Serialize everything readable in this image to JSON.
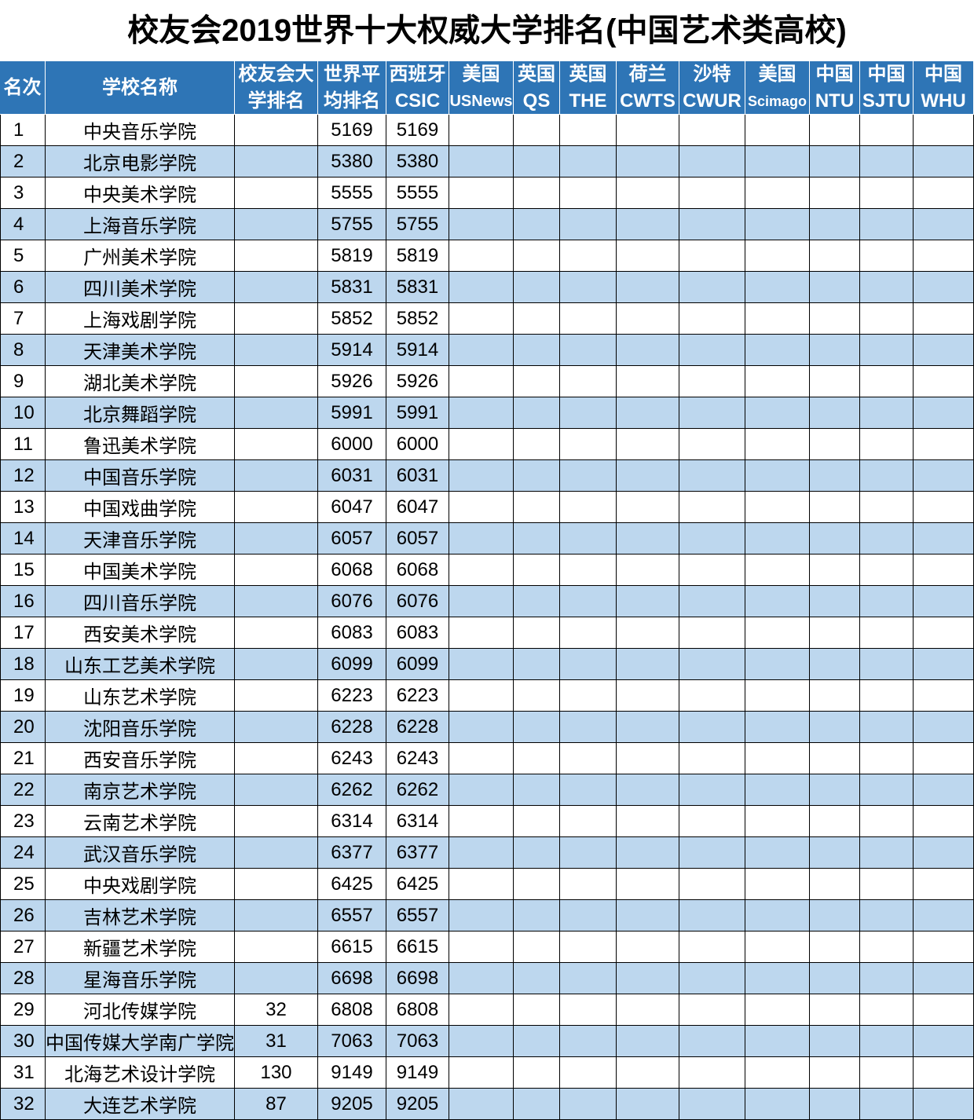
{
  "title": "校友会2019世界十大权威大学排名(中国艺术类高校)",
  "table": {
    "header": [
      [
        "名次"
      ],
      [
        "学校名称"
      ],
      [
        "校友会大",
        "学排名"
      ],
      [
        "世界平",
        "均排名"
      ],
      [
        "西班牙",
        "CSIC"
      ],
      [
        "美国",
        "USNews"
      ],
      [
        "英国",
        "QS"
      ],
      [
        "英国",
        "THE"
      ],
      [
        "荷兰",
        "CWTS"
      ],
      [
        "沙特",
        "CWUR"
      ],
      [
        "美国",
        "Scimago"
      ],
      [
        "中国",
        "NTU"
      ],
      [
        "中国",
        "SJTU"
      ],
      [
        "中国",
        "WHU"
      ]
    ],
    "rows": [
      {
        "rank": 1,
        "name": "中央音乐学院",
        "world": 5169,
        "csic": 5169
      },
      {
        "rank": 2,
        "name": "北京电影学院",
        "world": 5380,
        "csic": 5380
      },
      {
        "rank": 3,
        "name": "中央美术学院",
        "world": 5555,
        "csic": 5555
      },
      {
        "rank": 4,
        "name": "上海音乐学院",
        "world": 5755,
        "csic": 5755
      },
      {
        "rank": 5,
        "name": "广州美术学院",
        "world": 5819,
        "csic": 5819
      },
      {
        "rank": 6,
        "name": "四川美术学院",
        "world": 5831,
        "csic": 5831
      },
      {
        "rank": 7,
        "name": "上海戏剧学院",
        "world": 5852,
        "csic": 5852
      },
      {
        "rank": 8,
        "name": "天津美术学院",
        "world": 5914,
        "csic": 5914
      },
      {
        "rank": 9,
        "name": "湖北美术学院",
        "world": 5926,
        "csic": 5926
      },
      {
        "rank": 10,
        "name": "北京舞蹈学院",
        "world": 5991,
        "csic": 5991
      },
      {
        "rank": 11,
        "name": "鲁迅美术学院",
        "world": 6000,
        "csic": 6000
      },
      {
        "rank": 12,
        "name": "中国音乐学院",
        "world": 6031,
        "csic": 6031
      },
      {
        "rank": 13,
        "name": "中国戏曲学院",
        "world": 6047,
        "csic": 6047
      },
      {
        "rank": 14,
        "name": "天津音乐学院",
        "world": 6057,
        "csic": 6057
      },
      {
        "rank": 15,
        "name": "中国美术学院",
        "world": 6068,
        "csic": 6068
      },
      {
        "rank": 16,
        "name": "四川音乐学院",
        "world": 6076,
        "csic": 6076
      },
      {
        "rank": 17,
        "name": "西安美术学院",
        "world": 6083,
        "csic": 6083
      },
      {
        "rank": 18,
        "name": "山东工艺美术学院",
        "world": 6099,
        "csic": 6099
      },
      {
        "rank": 19,
        "name": "山东艺术学院",
        "world": 6223,
        "csic": 6223
      },
      {
        "rank": 20,
        "name": "沈阳音乐学院",
        "world": 6228,
        "csic": 6228
      },
      {
        "rank": 21,
        "name": "西安音乐学院",
        "world": 6243,
        "csic": 6243
      },
      {
        "rank": 22,
        "name": "南京艺术学院",
        "world": 6262,
        "csic": 6262
      },
      {
        "rank": 23,
        "name": "云南艺术学院",
        "world": 6314,
        "csic": 6314
      },
      {
        "rank": 24,
        "name": "武汉音乐学院",
        "world": 6377,
        "csic": 6377
      },
      {
        "rank": 25,
        "name": "中央戏剧学院",
        "world": 6425,
        "csic": 6425
      },
      {
        "rank": 26,
        "name": "吉林艺术学院",
        "world": 6557,
        "csic": 6557
      },
      {
        "rank": 27,
        "name": "新疆艺术学院",
        "world": 6615,
        "csic": 6615
      },
      {
        "rank": 28,
        "name": "星海音乐学院",
        "world": 6698,
        "csic": 6698
      },
      {
        "rank": 29,
        "name": "河北传媒学院",
        "alumni": 32,
        "world": 6808,
        "csic": 6808
      },
      {
        "rank": 30,
        "name": "中国传媒大学南广学院",
        "alumni": 31,
        "world": 7063,
        "csic": 7063
      },
      {
        "rank": 31,
        "name": "北海艺术设计学院",
        "alumni": 130,
        "world": 9149,
        "csic": 9149
      },
      {
        "rank": 32,
        "name": "大连艺术学院",
        "alumni": 87,
        "world": 9205,
        "csic": 9205
      }
    ]
  }
}
